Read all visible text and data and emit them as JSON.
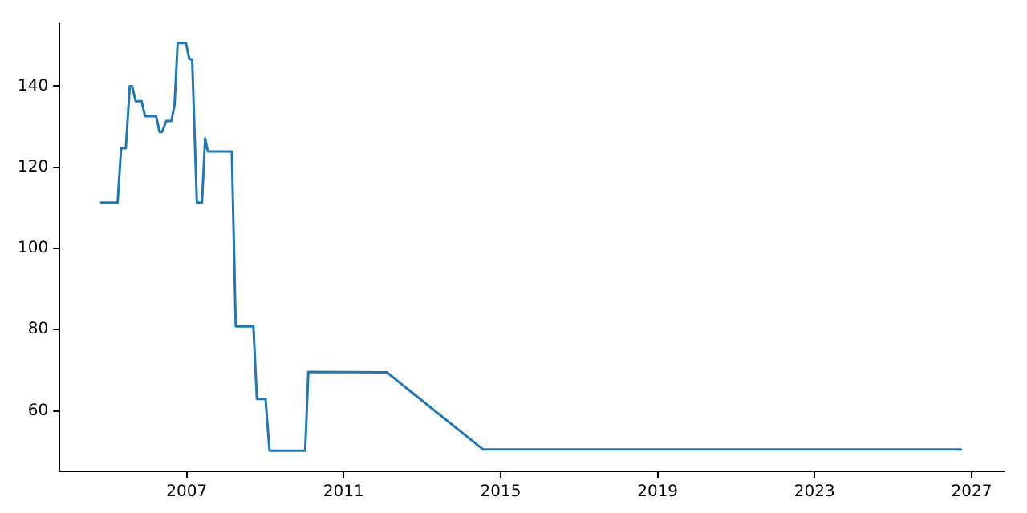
{
  "chart_data": {
    "type": "line",
    "x": [
      2004.82,
      2005.24,
      2005.33,
      2005.45,
      2005.55,
      2005.61,
      2005.7,
      2005.85,
      2005.94,
      2006.22,
      2006.31,
      2006.37,
      2006.48,
      2006.61,
      2006.69,
      2006.77,
      2006.98,
      2007.07,
      2007.14,
      2007.26,
      2007.39,
      2007.47,
      2007.54,
      2008.15,
      2008.25,
      2008.7,
      2008.79,
      2009.01,
      2009.11,
      2010.02,
      2010.1,
      2012.1,
      2014.55,
      2026.73
    ],
    "series": [
      {
        "color": "#1f77b4",
        "values": [
          111.3,
          111.3,
          124.7,
          124.7,
          140,
          140,
          136.3,
          136.3,
          132.6,
          132.6,
          128.7,
          128.7,
          131.4,
          131.4,
          135.3,
          150.6,
          150.6,
          146.6,
          146.6,
          111.3,
          111.3,
          127.1,
          123.9,
          123.9,
          80.8,
          80.8,
          62.9,
          62.9,
          50.2,
          50.2,
          69.6,
          69.5,
          50.5,
          50.5
        ]
      }
    ],
    "xlim": [
      2003.76,
      2027.84
    ],
    "xticks": [
      2007,
      2011,
      2015,
      2019,
      2023,
      2027
    ],
    "ylim": [
      45.1,
      155.3
    ],
    "yticks": [
      60,
      80,
      100,
      120,
      140
    ],
    "grid": false,
    "legend": false,
    "marker": "none",
    "line_style": "solid"
  }
}
